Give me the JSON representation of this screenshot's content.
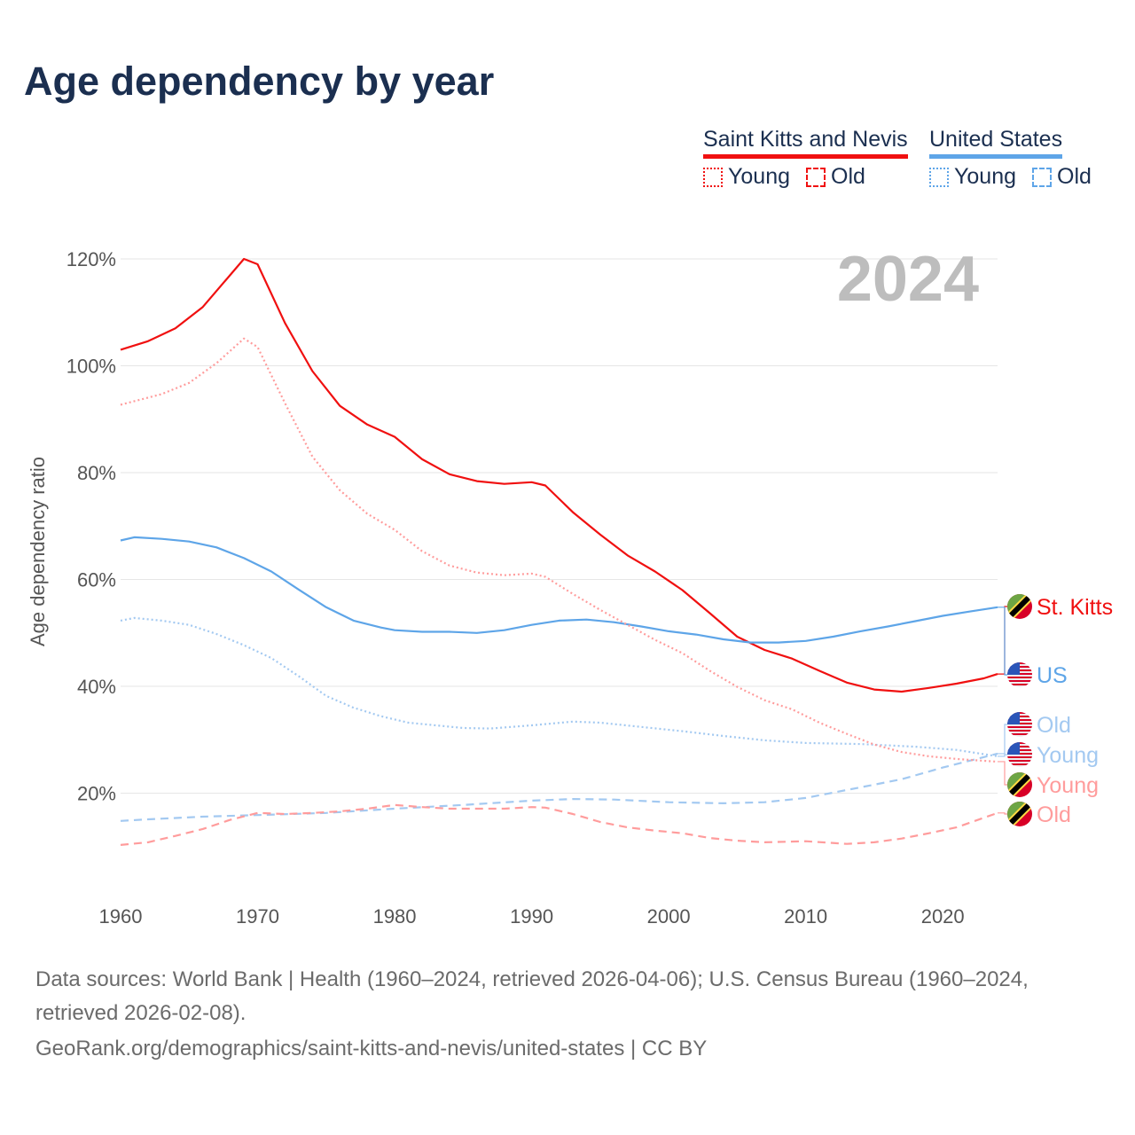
{
  "title": "Age dependency by year",
  "legend": {
    "groups": [
      {
        "name": "Saint Kitts and Nevis",
        "color": "#f01010",
        "items": [
          "Young",
          "Old"
        ]
      },
      {
        "name": "United States",
        "color": "#5ea5e8",
        "items": [
          "Young",
          "Old"
        ]
      }
    ]
  },
  "year_label": "2024",
  "chart_data": {
    "type": "line",
    "title": "Age dependency by year",
    "xlabel": "",
    "ylabel": "Age dependency ratio",
    "xlim": [
      1960,
      2024
    ],
    "ylim": [
      0,
      120
    ],
    "xticks": [
      "1960",
      "1970",
      "1980",
      "1990",
      "2000",
      "2010",
      "2020"
    ],
    "yticks": [
      "20%",
      "40%",
      "60%",
      "80%",
      "100%",
      "120%"
    ],
    "grid": true,
    "series": [
      {
        "name": "Saint Kitts and Nevis total",
        "color": "#f01010",
        "dash": "solid",
        "end_label": "St. Kitts",
        "flag": "kn",
        "points": [
          [
            1960,
            103
          ],
          [
            1962,
            104.6
          ],
          [
            1964,
            107
          ],
          [
            1966,
            111
          ],
          [
            1968,
            117
          ],
          [
            1969,
            120
          ],
          [
            1970,
            119
          ],
          [
            1972,
            108
          ],
          [
            1974,
            99
          ],
          [
            1976,
            92.5
          ],
          [
            1978,
            89
          ],
          [
            1980,
            86.7
          ],
          [
            1982,
            82.5
          ],
          [
            1984,
            79.7
          ],
          [
            1986,
            78.4
          ],
          [
            1988,
            77.9
          ],
          [
            1990,
            78.2
          ],
          [
            1991,
            77.6
          ],
          [
            1993,
            72.6
          ],
          [
            1995,
            68.4
          ],
          [
            1997,
            64.5
          ],
          [
            1999,
            61.5
          ],
          [
            2001,
            58
          ],
          [
            2003,
            53.7
          ],
          [
            2005,
            49.3
          ],
          [
            2007,
            46.8
          ],
          [
            2009,
            45.2
          ],
          [
            2011,
            42.9
          ],
          [
            2013,
            40.7
          ],
          [
            2015,
            39.4
          ],
          [
            2017,
            39
          ],
          [
            2019,
            39.7
          ],
          [
            2021,
            40.5
          ],
          [
            2023,
            41.5
          ],
          [
            2024,
            42.3
          ]
        ]
      },
      {
        "name": "United States total",
        "color": "#5ea5e8",
        "dash": "solid",
        "end_label": "US",
        "flag": "us",
        "points": [
          [
            1960,
            67.3
          ],
          [
            1961,
            67.9
          ],
          [
            1963,
            67.6
          ],
          [
            1965,
            67.1
          ],
          [
            1967,
            66
          ],
          [
            1969,
            64
          ],
          [
            1971,
            61.5
          ],
          [
            1973,
            58.1
          ],
          [
            1975,
            54.8
          ],
          [
            1977,
            52.3
          ],
          [
            1979,
            51
          ],
          [
            1980,
            50.5
          ],
          [
            1982,
            50.2
          ],
          [
            1984,
            50.2
          ],
          [
            1986,
            50
          ],
          [
            1988,
            50.5
          ],
          [
            1990,
            51.5
          ],
          [
            1992,
            52.3
          ],
          [
            1994,
            52.5
          ],
          [
            1996,
            52
          ],
          [
            1998,
            51.2
          ],
          [
            2000,
            50.3
          ],
          [
            2002,
            49.7
          ],
          [
            2004,
            48.8
          ],
          [
            2006,
            48.2
          ],
          [
            2008,
            48.2
          ],
          [
            2010,
            48.5
          ],
          [
            2012,
            49.3
          ],
          [
            2014,
            50.3
          ],
          [
            2016,
            51.2
          ],
          [
            2018,
            52.2
          ],
          [
            2020,
            53.2
          ],
          [
            2022,
            54
          ],
          [
            2024,
            54.8
          ]
        ]
      },
      {
        "name": "United States Old",
        "color": "#a3c9f1",
        "dash": "dashed",
        "end_label": "Old",
        "flag": "us",
        "points": [
          [
            1960,
            14.8
          ],
          [
            1962,
            15.1
          ],
          [
            1966,
            15.6
          ],
          [
            1970,
            15.9
          ],
          [
            1975,
            16.3
          ],
          [
            1980,
            17.1
          ],
          [
            1985,
            17.8
          ],
          [
            1990,
            18.6
          ],
          [
            1993,
            18.9
          ],
          [
            1996,
            18.8
          ],
          [
            2000,
            18.3
          ],
          [
            2004,
            18.1
          ],
          [
            2007,
            18.3
          ],
          [
            2010,
            19.1
          ],
          [
            2014,
            21.1
          ],
          [
            2017,
            22.6
          ],
          [
            2020,
            24.8
          ],
          [
            2024,
            27.4
          ]
        ]
      },
      {
        "name": "United States Young",
        "color": "#a3c9f1",
        "dash": "dotted",
        "end_label": "Young",
        "flag": "us",
        "points": [
          [
            1960,
            52.3
          ],
          [
            1961,
            52.8
          ],
          [
            1963,
            52.3
          ],
          [
            1965,
            51.5
          ],
          [
            1967,
            49.8
          ],
          [
            1969,
            47.7
          ],
          [
            1971,
            45.3
          ],
          [
            1973,
            41.9
          ],
          [
            1975,
            38.2
          ],
          [
            1977,
            36
          ],
          [
            1979,
            34.4
          ],
          [
            1981,
            33.2
          ],
          [
            1983,
            32.7
          ],
          [
            1985,
            32.2
          ],
          [
            1987,
            32.1
          ],
          [
            1990,
            32.7
          ],
          [
            1993,
            33.4
          ],
          [
            1995,
            33.2
          ],
          [
            1998,
            32.4
          ],
          [
            2001,
            31.6
          ],
          [
            2004,
            30.7
          ],
          [
            2007,
            29.9
          ],
          [
            2010,
            29.4
          ],
          [
            2014,
            29.2
          ],
          [
            2018,
            28.7
          ],
          [
            2021,
            28.1
          ],
          [
            2024,
            26.9
          ]
        ]
      },
      {
        "name": "Saint Kitts and Nevis Young",
        "color": "#ff9c9c",
        "dash": "dotted",
        "end_label": "Young",
        "flag": "kn",
        "points": [
          [
            1960,
            92.7
          ],
          [
            1963,
            94.7
          ],
          [
            1965,
            96.8
          ],
          [
            1967,
            100.5
          ],
          [
            1969,
            105.1
          ],
          [
            1970,
            103.5
          ],
          [
            1972,
            93
          ],
          [
            1974,
            83
          ],
          [
            1976,
            76.7
          ],
          [
            1978,
            72.3
          ],
          [
            1980,
            69.3
          ],
          [
            1982,
            65.3
          ],
          [
            1984,
            62.6
          ],
          [
            1986,
            61.3
          ],
          [
            1988,
            60.8
          ],
          [
            1990,
            61.1
          ],
          [
            1991,
            60.5
          ],
          [
            1993,
            57.3
          ],
          [
            1995,
            54.3
          ],
          [
            1997,
            51.5
          ],
          [
            1999,
            48.7
          ],
          [
            2001,
            46.2
          ],
          [
            2003,
            42.9
          ],
          [
            2005,
            39.9
          ],
          [
            2007,
            37.4
          ],
          [
            2009,
            35.7
          ],
          [
            2011,
            33.2
          ],
          [
            2013,
            31.1
          ],
          [
            2015,
            29.1
          ],
          [
            2017,
            27.7
          ],
          [
            2019,
            26.9
          ],
          [
            2021,
            26.4
          ],
          [
            2024,
            25.9
          ]
        ]
      },
      {
        "name": "Saint Kitts and Nevis Old",
        "color": "#ff9c9c",
        "dash": "dashed",
        "end_label": "Old",
        "flag": "kn",
        "points": [
          [
            1960,
            10.3
          ],
          [
            1962,
            10.8
          ],
          [
            1964,
            12
          ],
          [
            1966,
            13.3
          ],
          [
            1968,
            15
          ],
          [
            1970,
            16.3
          ],
          [
            1972,
            16.1
          ],
          [
            1974,
            16.3
          ],
          [
            1976,
            16.6
          ],
          [
            1978,
            17.1
          ],
          [
            1980,
            17.8
          ],
          [
            1982,
            17.4
          ],
          [
            1984,
            17.1
          ],
          [
            1988,
            17.1
          ],
          [
            1990,
            17.4
          ],
          [
            1991,
            17.3
          ],
          [
            1993,
            16.1
          ],
          [
            1995,
            14.6
          ],
          [
            1997,
            13.6
          ],
          [
            1999,
            13
          ],
          [
            2001,
            12.5
          ],
          [
            2003,
            11.6
          ],
          [
            2005,
            11.1
          ],
          [
            2007,
            10.8
          ],
          [
            2010,
            11
          ],
          [
            2013,
            10.5
          ],
          [
            2015,
            10.8
          ],
          [
            2017,
            11.5
          ],
          [
            2019,
            12.5
          ],
          [
            2021,
            13.6
          ],
          [
            2024,
            16.3
          ]
        ]
      }
    ]
  },
  "footer": {
    "sources": "Data sources: World Bank | Health (1960–2024, retrieved 2026-04-06); U.S. Census Bureau (1960–2024, retrieved 2026-02-08).",
    "credit": "GeoRank.org/demographics/saint-kitts-and-nevis/united-states | CC BY"
  }
}
